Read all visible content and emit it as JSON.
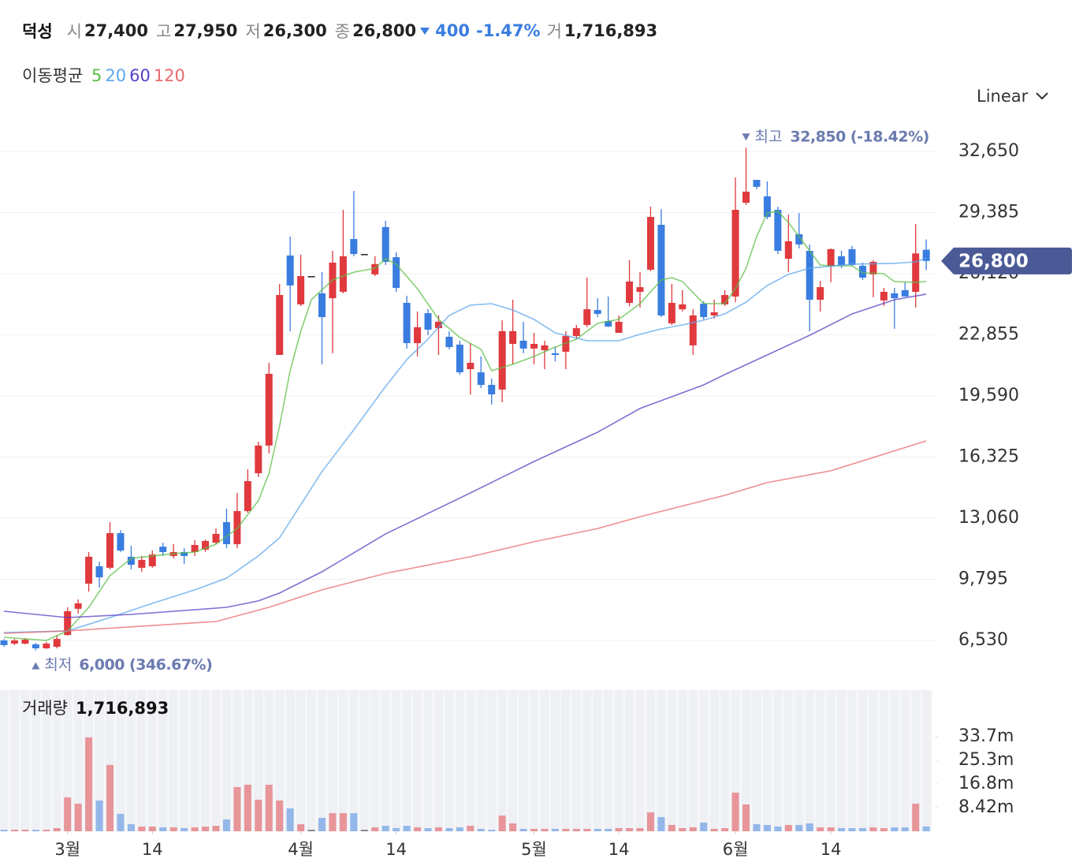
{
  "header": {
    "name": "덕성",
    "items": [
      {
        "label": "시",
        "value": "27,400"
      },
      {
        "label": "고",
        "value": "27,950"
      },
      {
        "label": "저",
        "value": "26,300"
      },
      {
        "label": "종",
        "value": "26,800"
      }
    ],
    "change": "400",
    "change_pct": "-1.47%",
    "volume_label": "거",
    "volume": "1,716,893"
  },
  "chart_data": {
    "type": "candlestick",
    "scale_option": "Linear",
    "grid": true,
    "up_color": "#e0393e",
    "down_color": "#3a7de0",
    "flat_color": "#222222",
    "ylim": [
      4508,
      34419
    ],
    "yticks": [
      {
        "value": 6530,
        "label": "6,530"
      },
      {
        "value": 9795,
        "label": "9,795"
      },
      {
        "value": 13060,
        "label": "13,060"
      },
      {
        "value": 16325,
        "label": "16,325"
      },
      {
        "value": 19590,
        "label": "19,590"
      },
      {
        "value": 22855,
        "label": "22,855"
      },
      {
        "value": 26120,
        "label": "26,120"
      },
      {
        "value": 29385,
        "label": "29,385"
      },
      {
        "value": 32650,
        "label": "32,650"
      }
    ],
    "xticks": [
      {
        "value": 6,
        "label": "3월"
      },
      {
        "value": 14,
        "label": "14"
      },
      {
        "value": 28,
        "label": "4월"
      },
      {
        "value": 37,
        "label": "14"
      },
      {
        "value": 50,
        "label": "5월"
      },
      {
        "value": 58,
        "label": "14"
      },
      {
        "value": 69,
        "label": "6월"
      },
      {
        "value": 78,
        "label": "14"
      }
    ],
    "open": [
      6530,
      6360,
      6360,
      6320,
      6110,
      6190,
      6820,
      8220,
      9560,
      10490,
      10410,
      12260,
      11000,
      10410,
      10490,
      11540,
      11040,
      11250,
      11250,
      11380,
      11750,
      12850,
      11670,
      13440,
      15460,
      16940,
      21780,
      27090,
      24480,
      25990,
      25070,
      24810,
      25150,
      27970,
      27170,
      26080,
      28610,
      27000,
      24560,
      22410,
      24010,
      23210,
      22750,
      22330,
      21020,
      20850,
      20180,
      19930,
      22370,
      22540,
      22120,
      22030,
      21870,
      21950,
      22790,
      23380,
      24180,
      23590,
      22960,
      24560,
      25150,
      26330,
      28730,
      23470,
      24220,
      22290,
      24520,
      23890,
      24480,
      24900,
      29910,
      31130,
      30250,
      29530,
      26920,
      28230,
      27340,
      24730,
      26500,
      27050,
      27430,
      26540,
      26080,
      24690,
      25070,
      25240,
      25150,
      27400
    ],
    "high": [
      6610,
      6610,
      6660,
      6400,
      6450,
      6820,
      8300,
      8720,
      11250,
      10740,
      12850,
      12430,
      11590,
      11040,
      11330,
      11750,
      11670,
      11460,
      11880,
      11920,
      12510,
      13570,
      14410,
      15670,
      17150,
      21360,
      25570,
      28100,
      27130,
      25990,
      26200,
      27340,
      29530,
      30540,
      27170,
      27050,
      28940,
      27260,
      24940,
      24100,
      24220,
      23890,
      23050,
      22540,
      22410,
      21700,
      20520,
      23630,
      24730,
      23550,
      22960,
      22540,
      22200,
      23050,
      23380,
      25910,
      24810,
      24900,
      23890,
      26840,
      26200,
      29700,
      29570,
      25570,
      25240,
      24220,
      24650,
      24730,
      25240,
      31260,
      32850,
      31130,
      31050,
      29700,
      29280,
      29360,
      27680,
      25740,
      27470,
      27340,
      27600,
      26710,
      26840,
      25360,
      25360,
      25660,
      28770,
      27950
    ],
    "low": [
      6190,
      6280,
      6320,
      6000,
      6070,
      6110,
      6780,
      7960,
      9140,
      9350,
      10320,
      11250,
      10320,
      10200,
      10410,
      11040,
      10910,
      10620,
      11040,
      11250,
      11670,
      11460,
      11460,
      13350,
      15250,
      16520,
      21780,
      23040,
      24390,
      25990,
      21280,
      21870,
      25070,
      27050,
      27170,
      25990,
      26580,
      25150,
      22120,
      21700,
      22830,
      21780,
      22080,
      20730,
      19670,
      20010,
      19130,
      19250,
      21280,
      21870,
      21280,
      21020,
      21440,
      21020,
      22620,
      23260,
      23800,
      23260,
      22960,
      24390,
      24310,
      26250,
      23800,
      23380,
      24100,
      21780,
      23680,
      23720,
      24390,
      24600,
      29790,
      30630,
      29030,
      27170,
      26200,
      27470,
      23050,
      24100,
      25660,
      26420,
      26500,
      25780,
      24860,
      24390,
      23170,
      24900,
      24310,
      26300
    ],
    "close": [
      6280,
      6530,
      6570,
      6110,
      6360,
      6610,
      8090,
      8510,
      11000,
      9900,
      12260,
      11330,
      10570,
      10830,
      11120,
      11250,
      11250,
      11040,
      11630,
      11840,
      12220,
      11670,
      13440,
      15040,
      16940,
      20770,
      24980,
      25490,
      25990,
      25990,
      23800,
      26710,
      27050,
      27170,
      27170,
      26630,
      26750,
      25360,
      22410,
      23260,
      23130,
      23550,
      22200,
      20850,
      21360,
      20180,
      19670,
      23050,
      23050,
      22120,
      22370,
      22290,
      21780,
      22790,
      23210,
      24220,
      23970,
      23300,
      23550,
      25700,
      25400,
      29150,
      23890,
      24560,
      24480,
      23890,
      23800,
      24060,
      24980,
      29530,
      30500,
      30760,
      29150,
      27340,
      27850,
      27680,
      24730,
      25400,
      27430,
      26540,
      26580,
      25910,
      26750,
      25150,
      24810,
      24900,
      27200,
      26800
    ],
    "last_price_label": "26,800",
    "high_marker": {
      "label": "최고",
      "text": "32,850 (-18.42%)"
    },
    "low_marker": {
      "label": "최저",
      "text": "6,000 (346.67%)"
    },
    "moving_averages": {
      "label": "이동평균",
      "series": [
        {
          "name": "5",
          "color": "#5cbf45",
          "x": [
            0,
            4,
            6,
            8,
            10,
            12,
            14,
            16,
            18,
            20,
            22,
            24,
            25,
            26,
            27,
            28,
            29,
            31,
            33,
            35,
            36,
            37,
            39,
            41,
            43,
            45,
            46,
            48,
            50,
            52,
            54,
            56,
            58,
            60,
            62,
            63,
            64,
            66,
            68,
            69,
            70,
            71,
            72,
            73,
            74,
            76,
            77,
            78,
            80,
            81,
            83,
            84,
            86,
            87
          ],
          "values": [
            6700,
            6530,
            7040,
            8300,
            9990,
            10910,
            11040,
            11160,
            11250,
            11670,
            12510,
            13990,
            15460,
            17990,
            20940,
            23050,
            24730,
            25780,
            26200,
            26410,
            26920,
            26630,
            25320,
            23680,
            22710,
            22080,
            20940,
            21280,
            21700,
            22200,
            22620,
            23470,
            23680,
            24520,
            25780,
            25910,
            25700,
            24520,
            24520,
            25320,
            26410,
            28100,
            29360,
            29450,
            28860,
            27340,
            26580,
            26540,
            26540,
            26160,
            26120,
            25700,
            25660,
            25700
          ]
        },
        {
          "name": "20",
          "color": "#5ba6ee",
          "x": [
            0,
            6,
            10,
            14,
            18,
            21,
            24,
            26,
            28,
            30,
            33,
            36,
            38,
            40,
            42,
            44,
            46,
            48,
            50,
            52,
            55,
            58,
            60,
            62,
            64,
            66,
            68,
            70,
            72,
            74,
            76,
            80,
            84,
            86,
            87
          ],
          "values": [
            6950,
            7040,
            7750,
            8510,
            9230,
            9860,
            11040,
            12010,
            13780,
            15550,
            17780,
            20100,
            21530,
            22620,
            23890,
            24440,
            24520,
            24180,
            23680,
            22960,
            22540,
            22540,
            22880,
            23170,
            23380,
            23640,
            23970,
            24600,
            25490,
            26080,
            26410,
            26630,
            26670,
            26750,
            26960
          ]
        },
        {
          "name": "60",
          "color": "#5b3fc4",
          "x": [
            0,
            6,
            12,
            18,
            21,
            24,
            26,
            30,
            36,
            44,
            50,
            56,
            60,
            66,
            68,
            72,
            76,
            80,
            84,
            87
          ],
          "values": [
            8090,
            7750,
            7920,
            8170,
            8300,
            8640,
            9060,
            10200,
            12220,
            14410,
            16090,
            17650,
            18920,
            20180,
            20730,
            21780,
            22830,
            23970,
            24730,
            25030
          ]
        },
        {
          "name": "120",
          "color": "#e8696b",
          "x": [
            0,
            6,
            20,
            25,
            30,
            36,
            44,
            50,
            56,
            60,
            68,
            72,
            78,
            87
          ],
          "values": [
            6910,
            7040,
            7540,
            8300,
            9230,
            10110,
            11000,
            11800,
            12510,
            13140,
            14280,
            14960,
            15590,
            17190
          ]
        }
      ]
    },
    "volume": {
      "label": "거래량",
      "last_label": "1,716,893",
      "ylim": [
        0,
        50200000
      ],
      "yticks": [
        {
          "value": 8420000,
          "label": "8.42m"
        },
        {
          "value": 16840000,
          "label": "16.8m"
        },
        {
          "value": 25260000,
          "label": "25.3m"
        },
        {
          "value": 33680000,
          "label": "33.7m"
        }
      ],
      "values": [
        560000,
        560000,
        560000,
        560000,
        560000,
        1120000,
        12070000,
        9820000,
        33400000,
        10950000,
        23580000,
        6180000,
        2530000,
        1680000,
        1680000,
        1400000,
        1400000,
        1120000,
        1400000,
        1680000,
        1960000,
        4210000,
        15720000,
        16560000,
        11230000,
        16560000,
        10950000,
        8140000,
        2530000,
        560000,
        4770000,
        6460000,
        6460000,
        6460000,
        560000,
        1400000,
        1960000,
        1120000,
        1960000,
        1400000,
        1120000,
        1400000,
        1120000,
        1400000,
        1960000,
        840000,
        560000,
        5610000,
        2810000,
        840000,
        840000,
        840000,
        840000,
        840000,
        840000,
        840000,
        840000,
        840000,
        1120000,
        1120000,
        1120000,
        6740000,
        5050000,
        2250000,
        1120000,
        1400000,
        3090000,
        840000,
        1120000,
        13750000,
        9540000,
        2530000,
        2250000,
        1680000,
        2250000,
        2250000,
        2810000,
        1400000,
        1400000,
        1120000,
        1120000,
        1120000,
        1400000,
        1120000,
        1400000,
        1400000,
        9820000,
        1716893
      ]
    }
  }
}
